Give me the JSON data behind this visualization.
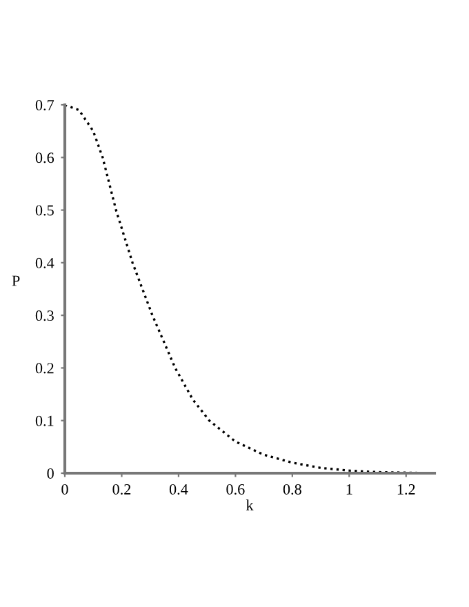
{
  "chart_data": {
    "type": "line",
    "xlabel": "k",
    "ylabel": "P",
    "x": [
      0,
      0.05,
      0.1,
      0.133,
      0.18,
      0.238,
      0.308,
      0.388,
      0.45,
      0.508,
      0.6,
      0.7,
      0.8,
      0.9,
      1.0,
      1.1,
      1.2,
      1.3
    ],
    "series": [
      {
        "color": "#000000",
        "values": [
          0.7,
          0.69,
          0.65,
          0.6,
          0.5,
          0.4,
          0.3,
          0.2,
          0.14,
          0.1,
          0.06,
          0.035,
          0.02,
          0.01,
          0.005,
          0.002,
          0.001,
          0
        ]
      }
    ],
    "line_style": "dotted",
    "xlim": [
      0,
      1.3
    ],
    "ylim": [
      0,
      0.7
    ],
    "xticks": [
      0,
      0.2,
      0.4,
      0.6,
      0.8,
      1,
      1.2
    ],
    "yticks": [
      0,
      0.1,
      0.2,
      0.3,
      0.4,
      0.5,
      0.6,
      0.7
    ],
    "grid": false,
    "legend": false
  }
}
